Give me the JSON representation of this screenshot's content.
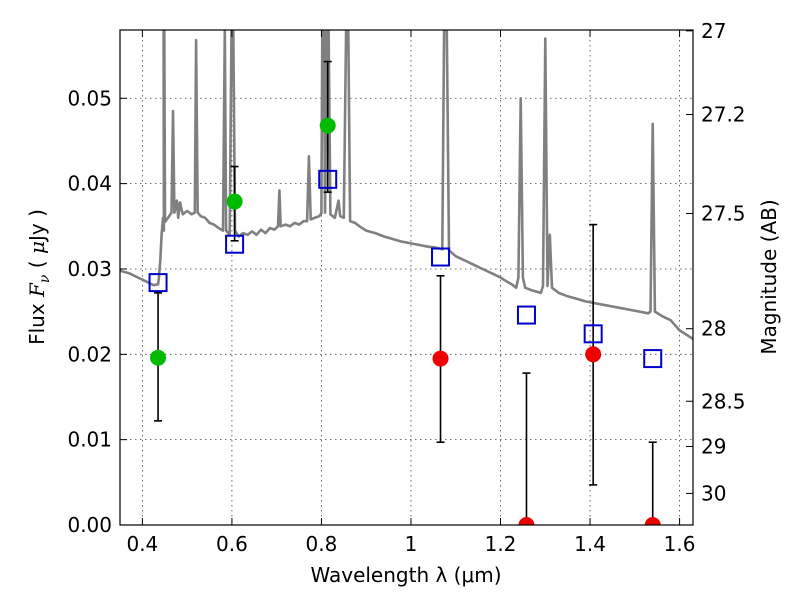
{
  "chart_data": {
    "type": "scatter",
    "title": "",
    "xlabel": "Wavelength  λ (μm)",
    "ylabel_parts": [
      "Flux  ",
      "F",
      "ν",
      "  (  ",
      "μ",
      "Jy  )"
    ],
    "ylabel_right": "Magnitude (AB)",
    "xlim": [
      0.35,
      1.63
    ],
    "ylim": [
      0.0,
      0.058
    ],
    "x_ticks": [
      0.4,
      0.6,
      0.8,
      1.0,
      1.2,
      1.4,
      1.6
    ],
    "x_tick_labels": [
      "0.4",
      "0.6",
      "0.8",
      "1",
      "1.2",
      "1.4",
      "1.6"
    ],
    "y_ticks": [
      0.0,
      0.01,
      0.02,
      0.03,
      0.04,
      0.05
    ],
    "y_tick_labels": [
      "0.00",
      "0.01",
      "0.02",
      "0.03",
      "0.04",
      "0.05"
    ],
    "right_ticks": [
      {
        "label": "27",
        "flux": 0.0579
      },
      {
        "label": "27.2",
        "flux": 0.0481
      },
      {
        "label": "27.5",
        "flux": 0.0365
      },
      {
        "label": "28",
        "flux": 0.023
      },
      {
        "label": "28.5",
        "flux": 0.0145
      },
      {
        "label": "29",
        "flux": 0.0092
      },
      {
        "label": "30",
        "flux": 0.0037
      }
    ],
    "grid": true,
    "colors": {
      "spectrum": "#808080",
      "detection": "#00bb00",
      "nondetection": "#ee0000",
      "model": "#0000cc",
      "errorbar": "#000000"
    },
    "series": [
      {
        "kind": "spectrum",
        "points": [
          [
            0.35,
            0.0298
          ],
          [
            0.37,
            0.0295
          ],
          [
            0.39,
            0.029
          ],
          [
            0.41,
            0.0285
          ],
          [
            0.425,
            0.0281
          ],
          [
            0.435,
            0.0282
          ],
          [
            0.437,
            0.029
          ],
          [
            0.44,
            0.031
          ],
          [
            0.443,
            0.034
          ],
          [
            0.446,
            0.036
          ],
          [
            0.448,
            0.0345
          ],
          [
            0.4475,
            0.058
          ],
          [
            0.449,
            0.058
          ],
          [
            0.4505,
            0.0355
          ],
          [
            0.46,
            0.0362
          ],
          [
            0.465,
            0.0366
          ],
          [
            0.4685,
            0.0485
          ],
          [
            0.4715,
            0.0366
          ],
          [
            0.477,
            0.038
          ],
          [
            0.48,
            0.036
          ],
          [
            0.484,
            0.0378
          ],
          [
            0.49,
            0.0364
          ],
          [
            0.5,
            0.0368
          ],
          [
            0.51,
            0.0364
          ],
          [
            0.517,
            0.0366
          ],
          [
            0.52,
            0.0568
          ],
          [
            0.5235,
            0.0366
          ],
          [
            0.53,
            0.0362
          ],
          [
            0.54,
            0.036
          ],
          [
            0.55,
            0.0354
          ],
          [
            0.56,
            0.0352
          ],
          [
            0.57,
            0.0348
          ],
          [
            0.58,
            0.0345
          ],
          [
            0.584,
            0.058
          ],
          [
            0.587,
            0.0345
          ],
          [
            0.595,
            0.034
          ],
          [
            0.599,
            0.058
          ],
          [
            0.603,
            0.058
          ],
          [
            0.607,
            0.0345
          ],
          [
            0.615,
            0.0338
          ],
          [
            0.625,
            0.0342
          ],
          [
            0.635,
            0.034
          ],
          [
            0.645,
            0.0344
          ],
          [
            0.655,
            0.034
          ],
          [
            0.665,
            0.0346
          ],
          [
            0.675,
            0.0342
          ],
          [
            0.685,
            0.0348
          ],
          [
            0.695,
            0.0346
          ],
          [
            0.703,
            0.035
          ],
          [
            0.706,
            0.0392
          ],
          [
            0.709,
            0.035
          ],
          [
            0.72,
            0.0352
          ],
          [
            0.73,
            0.035
          ],
          [
            0.74,
            0.0354
          ],
          [
            0.75,
            0.0352
          ],
          [
            0.76,
            0.0356
          ],
          [
            0.768,
            0.0356
          ],
          [
            0.772,
            0.0432
          ],
          [
            0.776,
            0.0358
          ],
          [
            0.785,
            0.036
          ],
          [
            0.795,
            0.0362
          ],
          [
            0.8,
            0.0365
          ],
          [
            0.802,
            0.058
          ],
          [
            0.806,
            0.058
          ],
          [
            0.808,
            0.0366
          ],
          [
            0.812,
            0.058
          ],
          [
            0.816,
            0.058
          ],
          [
            0.82,
            0.0364
          ],
          [
            0.83,
            0.036
          ],
          [
            0.838,
            0.038
          ],
          [
            0.842,
            0.0362
          ],
          [
            0.85,
            0.036
          ],
          [
            0.855,
            0.058
          ],
          [
            0.86,
            0.058
          ],
          [
            0.864,
            0.0356
          ],
          [
            0.875,
            0.0354
          ],
          [
            0.885,
            0.035
          ],
          [
            0.9,
            0.0345
          ],
          [
            0.92,
            0.0342
          ],
          [
            0.94,
            0.0338
          ],
          [
            0.96,
            0.0335
          ],
          [
            0.98,
            0.0332
          ],
          [
            1.0,
            0.033
          ],
          [
            1.02,
            0.0328
          ],
          [
            1.04,
            0.0326
          ],
          [
            1.055,
            0.0325
          ],
          [
            1.07,
            0.0323
          ],
          [
            1.074,
            0.058
          ],
          [
            1.08,
            0.058
          ],
          [
            1.085,
            0.0322
          ],
          [
            1.1,
            0.0315
          ],
          [
            1.12,
            0.031
          ],
          [
            1.14,
            0.0305
          ],
          [
            1.16,
            0.03
          ],
          [
            1.18,
            0.0295
          ],
          [
            1.2,
            0.029
          ],
          [
            1.215,
            0.0285
          ],
          [
            1.225,
            0.0282
          ],
          [
            1.235,
            0.0278
          ],
          [
            1.24,
            0.029
          ],
          [
            1.245,
            0.05
          ],
          [
            1.25,
            0.029
          ],
          [
            1.255,
            0.0278
          ],
          [
            1.27,
            0.0275
          ],
          [
            1.29,
            0.0272
          ],
          [
            1.295,
            0.028
          ],
          [
            1.3,
            0.057
          ],
          [
            1.305,
            0.028
          ],
          [
            1.31,
            0.034
          ],
          [
            1.315,
            0.0278
          ],
          [
            1.33,
            0.0272
          ],
          [
            1.35,
            0.0268
          ],
          [
            1.37,
            0.0265
          ],
          [
            1.39,
            0.0262
          ],
          [
            1.41,
            0.026
          ],
          [
            1.43,
            0.0258
          ],
          [
            1.45,
            0.0256
          ],
          [
            1.47,
            0.0254
          ],
          [
            1.49,
            0.0252
          ],
          [
            1.51,
            0.025
          ],
          [
            1.53,
            0.0248
          ],
          [
            1.535,
            0.025
          ],
          [
            1.54,
            0.047
          ],
          [
            1.545,
            0.025
          ],
          [
            1.56,
            0.0245
          ],
          [
            1.58,
            0.024
          ],
          [
            1.6,
            0.0228
          ],
          [
            1.63,
            0.0218
          ]
        ]
      },
      {
        "kind": "detections",
        "points": [
          {
            "x": 0.435,
            "y": 0.0196,
            "lo": 0.0122,
            "hi": 0.0272
          },
          {
            "x": 0.606,
            "y": 0.0379,
            "lo": 0.0333,
            "hi": 0.042
          },
          {
            "x": 0.814,
            "y": 0.0468,
            "lo": 0.039,
            "hi": 0.0543
          }
        ]
      },
      {
        "kind": "nondetections",
        "points": [
          {
            "x": 1.066,
            "y": 0.0195,
            "lo": 0.0097,
            "hi": 0.0292
          },
          {
            "x": 1.258,
            "y": 0.0,
            "lo": 0.0,
            "hi": 0.0178
          },
          {
            "x": 1.407,
            "y": 0.02,
            "lo": 0.0047,
            "hi": 0.0352
          },
          {
            "x": 1.54,
            "y": 0.0,
            "lo": 0.0,
            "hi": 0.0097
          }
        ]
      },
      {
        "kind": "model_photometry",
        "points": [
          {
            "x": 0.435,
            "y": 0.0284
          },
          {
            "x": 0.606,
            "y": 0.0329
          },
          {
            "x": 0.814,
            "y": 0.0405
          },
          {
            "x": 1.066,
            "y": 0.0314
          },
          {
            "x": 1.258,
            "y": 0.0246
          },
          {
            "x": 1.407,
            "y": 0.0224
          },
          {
            "x": 1.54,
            "y": 0.0195
          }
        ]
      }
    ]
  }
}
